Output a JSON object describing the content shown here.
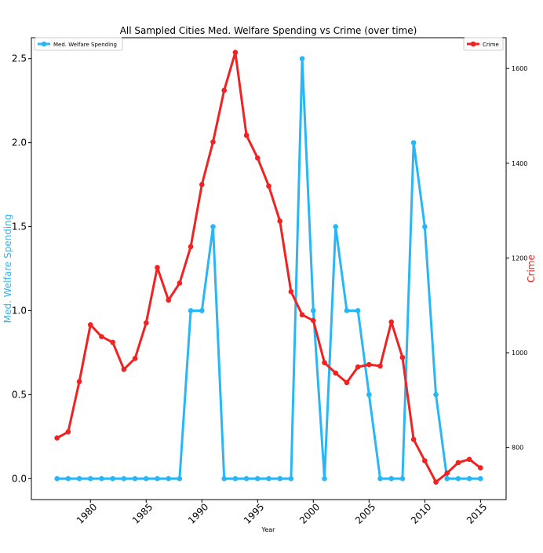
{
  "chart_data": {
    "type": "line",
    "title": "All Sampled Cities Med. Welfare Spending vs Crime (over time)",
    "xlabel": "Year",
    "ylabel_left": "Med. Welfare Spending",
    "ylabel_right": "Crime",
    "xlim": [
      1974.7,
      2017.3
    ],
    "xticks": [
      1980,
      1985,
      1990,
      1995,
      2000,
      2005,
      2010,
      2015
    ],
    "ylim_left": [
      -0.125,
      2.625
    ],
    "yticks_left": [
      "0.0",
      "0.5",
      "1.0",
      "1.5",
      "2.0",
      "2.5"
    ],
    "ylim_right": [
      690,
      1665
    ],
    "yticks_right": [
      800,
      1000,
      1200,
      1400,
      1600
    ],
    "grid": false,
    "x": [
      1977,
      1978,
      1979,
      1980,
      1981,
      1982,
      1983,
      1984,
      1985,
      1986,
      1987,
      1988,
      1989,
      1990,
      1991,
      1992,
      1993,
      1994,
      1995,
      1996,
      1997,
      1998,
      1999,
      2000,
      2001,
      2002,
      2003,
      2004,
      2005,
      2006,
      2007,
      2008,
      2009,
      2010,
      2011,
      2012,
      2013,
      2014,
      2015
    ],
    "series": [
      {
        "name": "Med. Welfare Spending",
        "axis": "left",
        "color": "#29b6f6",
        "values": [
          0,
          0,
          0,
          0,
          0,
          0,
          0,
          0,
          0,
          0,
          0,
          0,
          1.0,
          1.0,
          1.5,
          0,
          0,
          0,
          0,
          0,
          0,
          0,
          2.5,
          1.0,
          0,
          1.5,
          1.0,
          1.0,
          0.5,
          0,
          0,
          0,
          2.0,
          1.5,
          0.5,
          0,
          0,
          0,
          0
        ]
      },
      {
        "name": "Crime",
        "axis": "right",
        "color": "#f02222",
        "values": [
          820,
          833,
          939,
          1059,
          1034,
          1022,
          965,
          988,
          1063,
          1180,
          1111,
          1147,
          1224,
          1355,
          1445,
          1554,
          1634,
          1459,
          1411,
          1352,
          1278,
          1129,
          1080,
          1068,
          979,
          957,
          937,
          970,
          975,
          972,
          1065,
          990,
          817,
          772,
          727,
          746,
          768,
          775,
          757
        ]
      }
    ],
    "legend_left": {
      "label": "Med. Welfare Spending",
      "placement": "upper-left"
    },
    "legend_right": {
      "label": "Crime",
      "placement": "upper-right"
    }
  }
}
